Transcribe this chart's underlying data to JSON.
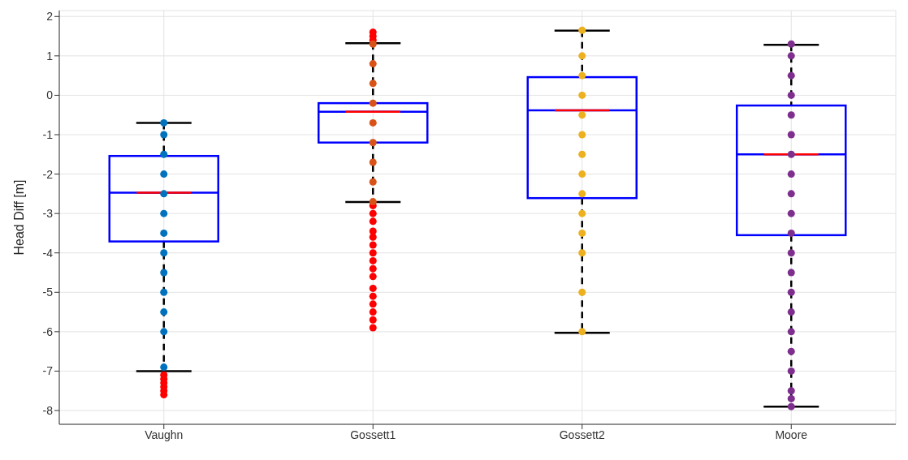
{
  "chart_data": {
    "type": "box",
    "ylabel": "Head Diff [m]",
    "categories": [
      "Vaughn",
      "Gossett1",
      "Gossett2",
      "Moore"
    ],
    "boxes": [
      {
        "low": -7.0,
        "q1": -3.71,
        "median": -2.47,
        "q3": -1.54,
        "high": -0.7,
        "outliers": [
          -7.1,
          -7.2,
          -7.3,
          -7.4,
          -7.5,
          -7.6
        ]
      },
      {
        "low": -2.71,
        "q1": -1.2,
        "median": -0.42,
        "q3": -0.2,
        "high": 1.32,
        "outliers": [
          1.4,
          1.5,
          1.6,
          -2.8,
          -3.0,
          -3.2,
          -3.45,
          -3.6,
          -3.8,
          -4.0,
          -4.2,
          -4.4,
          -4.6,
          -4.9,
          -5.1,
          -5.3,
          -5.5,
          -5.7,
          -5.9
        ]
      },
      {
        "low": -6.03,
        "q1": -2.61,
        "median": -0.38,
        "q3": 0.46,
        "high": 1.64
      },
      {
        "low": -7.9,
        "q1": -3.55,
        "median": -1.5,
        "q3": -0.26,
        "high": 1.28
      }
    ],
    "series": [
      {
        "type": "scatter",
        "color": "#0072bd",
        "x": [
          "Vaughn",
          "Vaughn",
          "Vaughn",
          "Vaughn",
          "Vaughn",
          "Vaughn",
          "Vaughn",
          "Vaughn",
          "Vaughn",
          "Vaughn",
          "Vaughn",
          "Vaughn",
          "Vaughn"
        ],
        "values": [
          -0.7,
          -1.0,
          -1.5,
          -2.0,
          -2.5,
          -3.0,
          -3.5,
          -4.0,
          -4.5,
          -5.0,
          -5.5,
          -6.0,
          -6.9
        ]
      },
      {
        "type": "scatter",
        "color": "#d95319",
        "x": [
          "Gossett1",
          "Gossett1",
          "Gossett1",
          "Gossett1",
          "Gossett1",
          "Gossett1",
          "Gossett1",
          "Gossett1",
          "Gossett1"
        ],
        "values": [
          1.3,
          0.8,
          0.3,
          -0.2,
          -0.7,
          -1.2,
          -1.7,
          -2.2,
          -2.7
        ]
      },
      {
        "type": "scatter",
        "color": "#edb120",
        "x": [
          "Gossett2",
          "Gossett2",
          "Gossett2",
          "Gossett2",
          "Gossett2",
          "Gossett2",
          "Gossett2",
          "Gossett2",
          "Gossett2",
          "Gossett2",
          "Gossett2",
          "Gossett2",
          "Gossett2",
          "Gossett2"
        ],
        "values": [
          1.65,
          1.0,
          0.5,
          0.0,
          -0.5,
          -1.0,
          -1.5,
          -2.0,
          -2.5,
          -3.0,
          -3.5,
          -4.0,
          -5.0,
          -6.0
        ]
      },
      {
        "type": "scatter",
        "color": "#7e2f8e",
        "x": [
          "Moore",
          "Moore",
          "Moore",
          "Moore",
          "Moore",
          "Moore",
          "Moore",
          "Moore",
          "Moore",
          "Moore",
          "Moore",
          "Moore",
          "Moore",
          "Moore",
          "Moore",
          "Moore",
          "Moore",
          "Moore",
          "Moore",
          "Moore",
          "Moore"
        ],
        "values": [
          1.3,
          1.0,
          0.5,
          0.0,
          -0.5,
          -1.0,
          -1.5,
          -2.0,
          -2.5,
          -3.0,
          -3.5,
          -4.0,
          -4.5,
          -5.0,
          -5.5,
          -6.0,
          -6.5,
          -7.0,
          -7.5,
          -7.9,
          -7.7
        ]
      }
    ],
    "color": "#0000ff",
    "ylim": [
      -8.35,
      2.15
    ],
    "yticks": [
      -8,
      -7,
      -6,
      -5,
      -4,
      -3,
      -2,
      -1,
      0,
      1,
      2
    ],
    "grid": true
  }
}
